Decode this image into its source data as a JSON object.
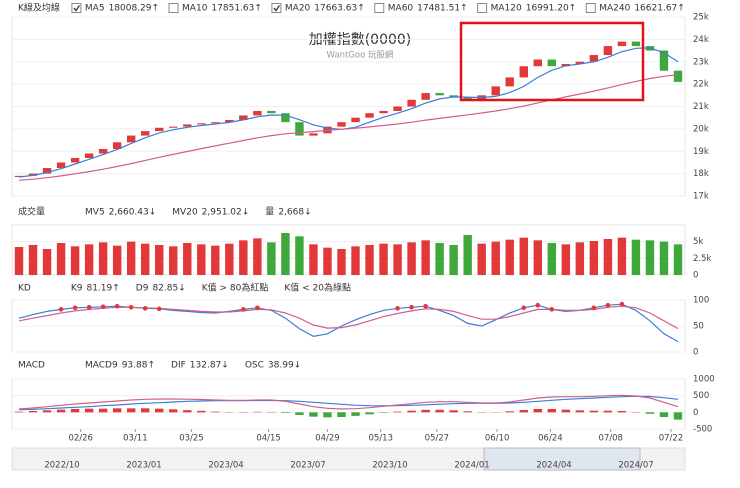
{
  "chart_data": [
    {
      "type": "candlestick",
      "title": "加權指數(0000)",
      "subtitle": "WantGoo 玩股網",
      "legend_title": "K線及均線",
      "up_color": "#e2383a",
      "down_color": "#3ea83a",
      "open": [
        17850,
        17900,
        18000,
        18250,
        18500,
        18700,
        18900,
        19100,
        19400,
        19700,
        19900,
        20050,
        20100,
        20200,
        20250,
        20300,
        20400,
        20600,
        20800,
        20700,
        20300,
        19700,
        19800,
        20100,
        20300,
        20500,
        20700,
        20800,
        21000,
        21300,
        21600,
        21500,
        21400,
        21300,
        21500,
        21900,
        22300,
        22800,
        23100,
        22800,
        22900,
        23000,
        23300,
        23700,
        23900,
        23700,
        23500,
        22600
      ],
      "close": [
        17900,
        18000,
        18250,
        18500,
        18700,
        18900,
        19100,
        19400,
        19700,
        19900,
        20050,
        20100,
        20200,
        20250,
        20300,
        20400,
        20600,
        20800,
        20700,
        20300,
        19700,
        19800,
        20100,
        20300,
        20500,
        20700,
        20800,
        21000,
        21300,
        21600,
        21500,
        21400,
        21300,
        21500,
        21900,
        22300,
        22800,
        23100,
        22800,
        22900,
        23000,
        23300,
        23700,
        23900,
        23700,
        23500,
        22600,
        22100
      ],
      "series": [
        {
          "name": "MA5",
          "value_label": "18008.29↑",
          "color": "#3b7dd8",
          "checked": true,
          "values": [
            17850,
            17920,
            18050,
            18220,
            18430,
            18640,
            18850,
            19080,
            19350,
            19600,
            19820,
            19960,
            20070,
            20150,
            20220,
            20290,
            20400,
            20540,
            20620,
            20610,
            20410,
            20180,
            20030,
            19980,
            20070,
            20300,
            20520,
            20700,
            20900,
            21150,
            21340,
            21430,
            21420,
            21400,
            21450,
            21620,
            21900,
            22300,
            22620,
            22820,
            22900,
            23000,
            23200,
            23450,
            23600,
            23620,
            23400,
            23000
          ]
        },
        {
          "name": "MA10",
          "value_label": "17851.63↑",
          "color": "#f0a030",
          "checked": false
        },
        {
          "name": "MA20",
          "value_label": "17663.63↑",
          "color": "#d0608a",
          "checked": true,
          "values": [
            17700,
            17750,
            17820,
            17900,
            17990,
            18090,
            18200,
            18320,
            18450,
            18590,
            18730,
            18860,
            18990,
            19120,
            19240,
            19360,
            19480,
            19600,
            19700,
            19780,
            19830,
            19880,
            19930,
            19980,
            20030,
            20090,
            20150,
            20220,
            20300,
            20390,
            20470,
            20550,
            20630,
            20710,
            20800,
            20900,
            21020,
            21160,
            21300,
            21430,
            21560,
            21690,
            21830,
            21980,
            22120,
            22250,
            22350,
            22420
          ]
        },
        {
          "name": "MA60",
          "value_label": "17481.51↑",
          "color": "#5cb85c",
          "checked": false
        },
        {
          "name": "MA120",
          "value_label": "16991.20↑",
          "color": "#7a5cc8",
          "checked": false
        },
        {
          "name": "MA240",
          "value_label": "16621.67↑",
          "color": "#e8743b",
          "checked": false
        }
      ],
      "ylim": [
        17000,
        25000
      ],
      "yticks": [
        {
          "value": 17000,
          "label": "17k"
        },
        {
          "value": 18000,
          "label": "18k"
        },
        {
          "value": 19000,
          "label": "19k"
        },
        {
          "value": 20000,
          "label": "20k"
        },
        {
          "value": 21000,
          "label": "21k"
        },
        {
          "value": 22000,
          "label": "22k"
        },
        {
          "value": 23000,
          "label": "23k"
        },
        {
          "value": 24000,
          "label": "24k"
        },
        {
          "value": 25000,
          "label": "25k"
        }
      ]
    },
    {
      "type": "bar",
      "title": "成交量",
      "series": [
        {
          "name": "MV5",
          "value_label": "2,660.43↓",
          "color": "#3b7dd8"
        },
        {
          "name": "MV20",
          "value_label": "2,951.02↓",
          "color": "#d0608a"
        },
        {
          "name": "量",
          "value_label": "2,668↓",
          "color": "#333"
        }
      ],
      "values": [
        4200,
        4500,
        3900,
        4800,
        4300,
        4600,
        4900,
        4400,
        5000,
        4700,
        4500,
        4300,
        4800,
        4600,
        4400,
        4700,
        5200,
        5500,
        4900,
        6300,
        5800,
        4600,
        4100,
        3900,
        4300,
        4500,
        4700,
        4600,
        4900,
        5200,
        4800,
        4500,
        6000,
        4700,
        5000,
        5300,
        5600,
        5200,
        4800,
        4600,
        4900,
        5100,
        5400,
        5600,
        5300,
        5200,
        5000,
        4600
      ],
      "ylim": [
        0,
        7500
      ],
      "yticks": [
        0,
        {
          "value": 2500,
          "label": "2.5k"
        },
        {
          "value": 5000,
          "label": "5k"
        }
      ]
    },
    {
      "type": "line",
      "title": "KD",
      "notes": [
        "K值 > 80為紅點",
        "K值 < 20為綠點"
      ],
      "k_red_above": 80,
      "k_green_below": 20,
      "series": [
        {
          "name": "K9",
          "value_label": "81.19↑",
          "color": "#3b7dd8",
          "values": [
            65,
            72,
            78,
            82,
            85,
            86,
            87,
            88,
            86,
            84,
            83,
            80,
            78,
            76,
            75,
            78,
            82,
            85,
            80,
            65,
            45,
            30,
            35,
            50,
            62,
            72,
            80,
            84,
            86,
            88,
            80,
            70,
            55,
            50,
            62,
            75,
            85,
            90,
            82,
            78,
            80,
            85,
            90,
            92,
            80,
            60,
            35,
            20
          ]
        },
        {
          "name": "D9",
          "value_label": "82.85↓",
          "color": "#d0608a",
          "values": [
            60,
            65,
            70,
            75,
            79,
            82,
            84,
            86,
            86,
            85,
            84,
            82,
            80,
            78,
            77,
            77,
            79,
            82,
            81,
            75,
            65,
            52,
            46,
            47,
            52,
            60,
            68,
            74,
            79,
            83,
            82,
            78,
            70,
            63,
            63,
            68,
            75,
            82,
            82,
            80,
            80,
            82,
            86,
            88,
            85,
            75,
            60,
            45
          ]
        }
      ],
      "ylim": [
        0,
        100
      ],
      "yticks": [
        0,
        50,
        100
      ]
    },
    {
      "type": "macd",
      "title": "MACD",
      "series": [
        {
          "name": "MACD9",
          "value_label": "93.88↑",
          "color": "#3b7dd8",
          "values": [
            80,
            90,
            110,
            130,
            150,
            170,
            200,
            220,
            250,
            270,
            290,
            310,
            330,
            340,
            350,
            350,
            350,
            355,
            358,
            350,
            330,
            300,
            270,
            240,
            215,
            200,
            195,
            200,
            210,
            225,
            245,
            260,
            270,
            270,
            272,
            280,
            300,
            330,
            360,
            390,
            410,
            430,
            450,
            470,
            480,
            475,
            440,
            390
          ]
        },
        {
          "name": "DIF",
          "value_label": "132.87↓",
          "color": "#d0608a",
          "values": [
            100,
            130,
            170,
            210,
            250,
            280,
            310,
            340,
            370,
            390,
            400,
            400,
            395,
            385,
            370,
            360,
            360,
            370,
            370,
            330,
            250,
            170,
            120,
            100,
            110,
            140,
            180,
            220,
            260,
            300,
            320,
            320,
            300,
            280,
            280,
            310,
            370,
            430,
            460,
            470,
            470,
            480,
            500,
            510,
            490,
            430,
            300,
            170
          ]
        },
        {
          "name": "OSC",
          "value_label": "38.99↓",
          "color": "#333",
          "values": [
            20,
            40,
            60,
            80,
            100,
            110,
            110,
            120,
            120,
            120,
            110,
            90,
            65,
            45,
            20,
            10,
            10,
            15,
            12,
            -20,
            -80,
            -130,
            -150,
            -140,
            -105,
            -60,
            -15,
            20,
            50,
            75,
            75,
            60,
            30,
            10,
            8,
            30,
            70,
            100,
            100,
            80,
            60,
            50,
            50,
            40,
            10,
            -45,
            -140,
            -220
          ]
        }
      ],
      "ylim": [
        -500,
        1000
      ],
      "yticks": [
        -500,
        0,
        500,
        1000
      ],
      "xticks": [
        {
          "value": 4.4,
          "label": "02/26"
        },
        {
          "value": 8.3,
          "label": "03/11"
        },
        {
          "value": 12.3,
          "label": "03/25"
        },
        {
          "value": 17.8,
          "label": "04/15"
        },
        {
          "value": 22,
          "label": "04/29"
        },
        {
          "value": 25.8,
          "label": "05/13"
        },
        {
          "value": 29.8,
          "label": "05/27"
        },
        {
          "value": 34.1,
          "label": "06/10"
        },
        {
          "value": 37.9,
          "label": "06/24"
        },
        {
          "value": 42.2,
          "label": "07/08"
        },
        {
          "value": 46.5,
          "label": "07/22"
        }
      ]
    }
  ],
  "navigator_labels": [
    "2022/10",
    "2023/01",
    "2023/04",
    "2023/07",
    "2023/10",
    "2024/01",
    "2024/04",
    "2024/07"
  ]
}
